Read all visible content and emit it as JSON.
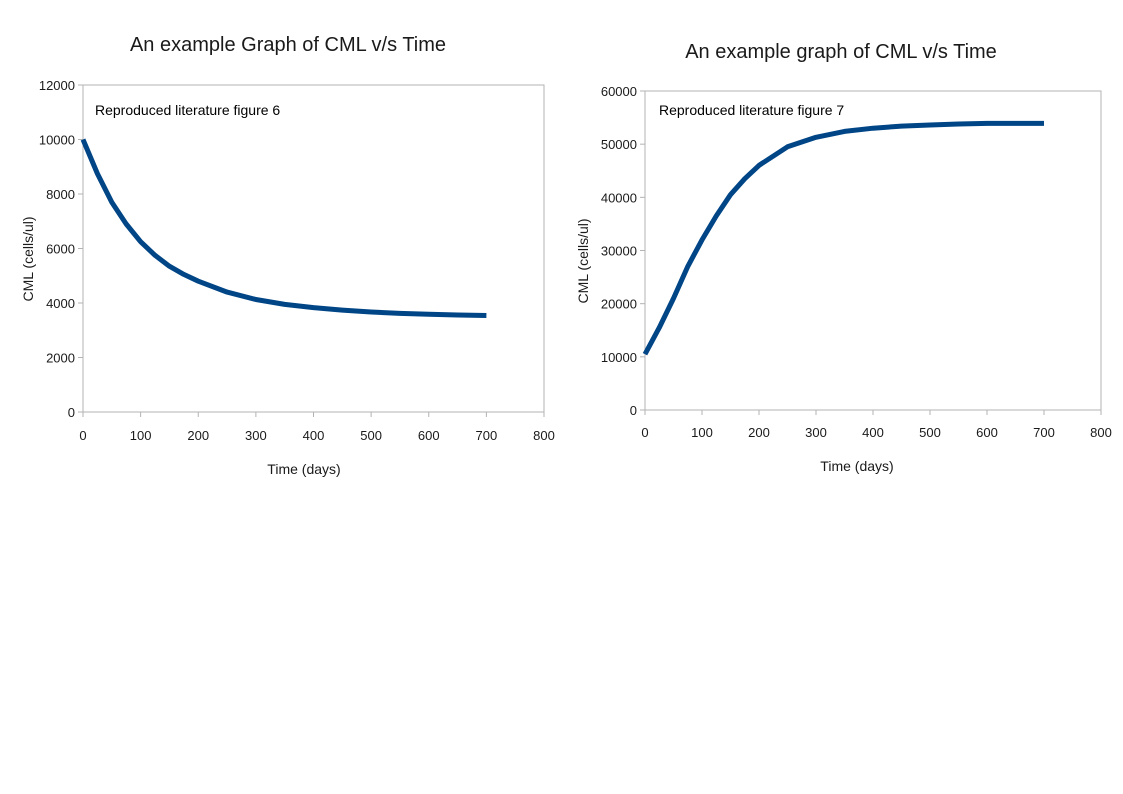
{
  "chart_data": [
    {
      "type": "line",
      "title": "An example Graph of CML v/s Time",
      "xlabel": "Time (days)",
      "ylabel": "CML (cells/ul)",
      "annotation": "Reproduced literature figure 6",
      "xlim": [
        0,
        800
      ],
      "ylim": [
        0,
        12000
      ],
      "xticks": [
        "0",
        "100",
        "200",
        "300",
        "400",
        "500",
        "600",
        "700",
        "800"
      ],
      "yticks": [
        "0",
        "2000",
        "4000",
        "6000",
        "8000",
        "10000",
        "12000"
      ],
      "grid": false,
      "line_color": "#004586",
      "series": [
        {
          "x": [
            0,
            25,
            50,
            75,
            100,
            125,
            150,
            175,
            200,
            250,
            300,
            350,
            400,
            450,
            500,
            550,
            600,
            650,
            700
          ],
          "y": [
            10000,
            8750,
            7700,
            6900,
            6250,
            5750,
            5350,
            5050,
            4800,
            4400,
            4130,
            3950,
            3830,
            3740,
            3670,
            3620,
            3590,
            3560,
            3540
          ]
        }
      ]
    },
    {
      "type": "line",
      "title": "An example graph of CML v/s Time",
      "xlabel": "Time (days)",
      "ylabel": "CML (cells/ul)",
      "annotation": "Reproduced literature figure 7",
      "xlim": [
        0,
        800
      ],
      "ylim": [
        0,
        60000
      ],
      "xticks": [
        "0",
        "100",
        "200",
        "300",
        "400",
        "500",
        "600",
        "700",
        "800"
      ],
      "yticks": [
        "0",
        "10000",
        "20000",
        "30000",
        "40000",
        "50000",
        "60000"
      ],
      "grid": false,
      "line_color": "#004586",
      "series": [
        {
          "x": [
            0,
            25,
            50,
            75,
            100,
            125,
            150,
            175,
            200,
            250,
            300,
            350,
            400,
            450,
            500,
            550,
            600,
            650,
            700
          ],
          "y": [
            10500,
            15500,
            21000,
            27000,
            32000,
            36500,
            40500,
            43500,
            46000,
            49500,
            51300,
            52400,
            53000,
            53400,
            53600,
            53800,
            53900,
            53900,
            53900
          ]
        }
      ]
    }
  ]
}
